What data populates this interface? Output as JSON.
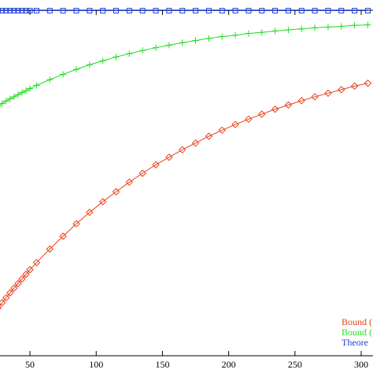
{
  "chart_data": {
    "type": "line",
    "x": [
      26,
      29,
      32,
      35,
      38,
      41,
      44,
      47,
      50,
      55,
      65,
      75,
      85,
      95,
      105,
      115,
      125,
      135,
      145,
      155,
      165,
      175,
      185,
      195,
      205,
      215,
      225,
      235,
      245,
      255,
      265,
      275,
      285,
      295,
      305
    ],
    "series": [
      {
        "name": "Bound (",
        "color": "#e8401c",
        "marker": "diamond",
        "values": [
          0.135,
          0.149,
          0.163,
          0.177,
          0.19,
          0.203,
          0.216,
          0.229,
          0.242,
          0.262,
          0.3,
          0.336,
          0.371,
          0.403,
          0.433,
          0.461,
          0.488,
          0.513,
          0.537,
          0.558,
          0.579,
          0.598,
          0.617,
          0.634,
          0.65,
          0.665,
          0.679,
          0.693,
          0.705,
          0.717,
          0.728,
          0.738,
          0.748,
          0.758,
          0.766
        ]
      },
      {
        "name": "Bound (",
        "color": "#22dd22",
        "marker": "plus",
        "values": [
          0.702,
          0.709,
          0.716,
          0.722,
          0.728,
          0.734,
          0.74,
          0.745,
          0.751,
          0.76,
          0.776,
          0.791,
          0.805,
          0.818,
          0.829,
          0.84,
          0.849,
          0.858,
          0.866,
          0.873,
          0.88,
          0.886,
          0.892,
          0.897,
          0.901,
          0.906,
          0.909,
          0.913,
          0.916,
          0.919,
          0.922,
          0.924,
          0.926,
          0.929,
          0.93
        ]
      },
      {
        "name": "Theore",
        "color": "#2040d0",
        "marker": "square",
        "values": [
          0.97,
          0.97,
          0.97,
          0.97,
          0.97,
          0.97,
          0.97,
          0.97,
          0.97,
          0.97,
          0.97,
          0.97,
          0.97,
          0.97,
          0.97,
          0.97,
          0.97,
          0.97,
          0.97,
          0.97,
          0.97,
          0.97,
          0.97,
          0.97,
          0.97,
          0.97,
          0.97,
          0.97,
          0.97,
          0.97,
          0.97,
          0.97,
          0.97,
          0.97,
          0.97
        ]
      }
    ],
    "xlim": [
      27.4,
      308.9
    ],
    "ylim": [
      0,
      1
    ],
    "xticks": [
      50,
      100,
      150,
      200,
      250,
      300
    ],
    "legend": "lower right"
  }
}
